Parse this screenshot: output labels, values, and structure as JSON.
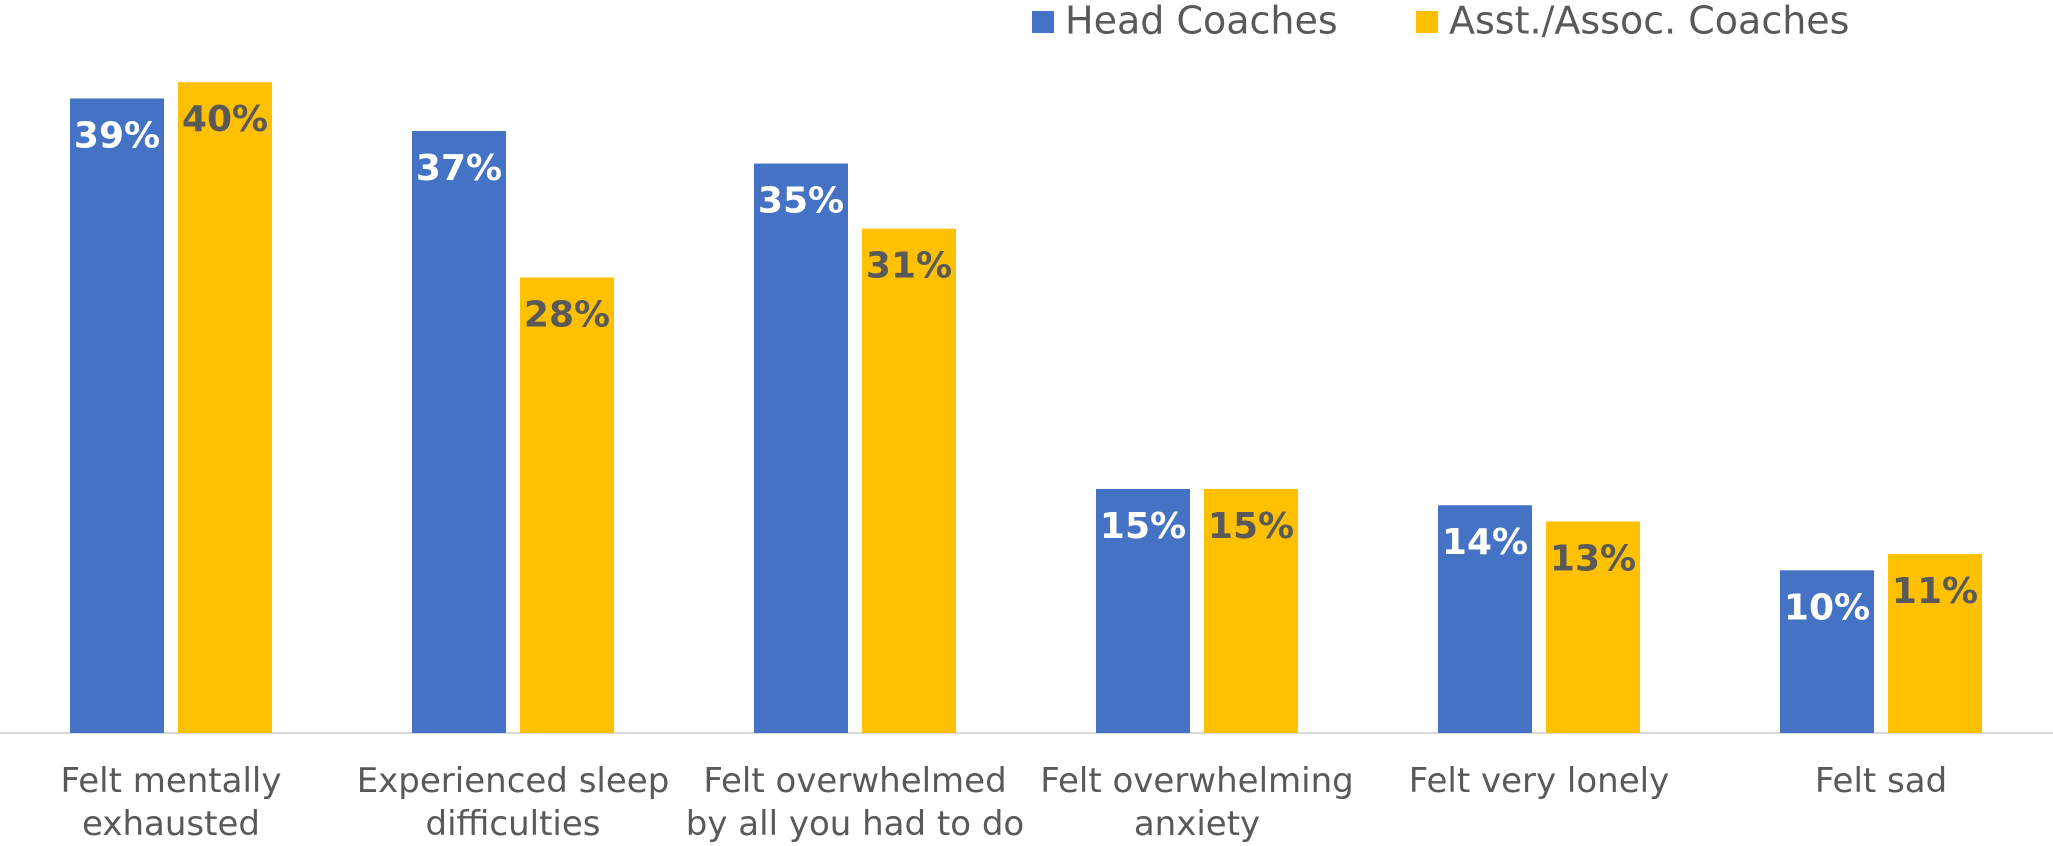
{
  "chart_data": {
    "type": "bar",
    "categories": [
      "Felt mentally\nexhausted",
      "Experienced sleep\ndifficulties",
      "Felt overwhelmed\nby all you had to do",
      "Felt overwhelming\nanxiety",
      "Felt very lonely",
      "Felt sad"
    ],
    "series": [
      {
        "name": "Head Coaches",
        "color": "#4472c4",
        "values": [
          39,
          37,
          35,
          15,
          14,
          10
        ],
        "value_labels": [
          "39%",
          "37%",
          "35%",
          "15%",
          "14%",
          "10%"
        ]
      },
      {
        "name": "Asst./Assoc. Coaches",
        "color": "#ffc000",
        "values": [
          40,
          28,
          31,
          15,
          13,
          11
        ],
        "value_labels": [
          "40%",
          "28%",
          "31%",
          "15%",
          "13%",
          "11%"
        ]
      }
    ]
  }
}
